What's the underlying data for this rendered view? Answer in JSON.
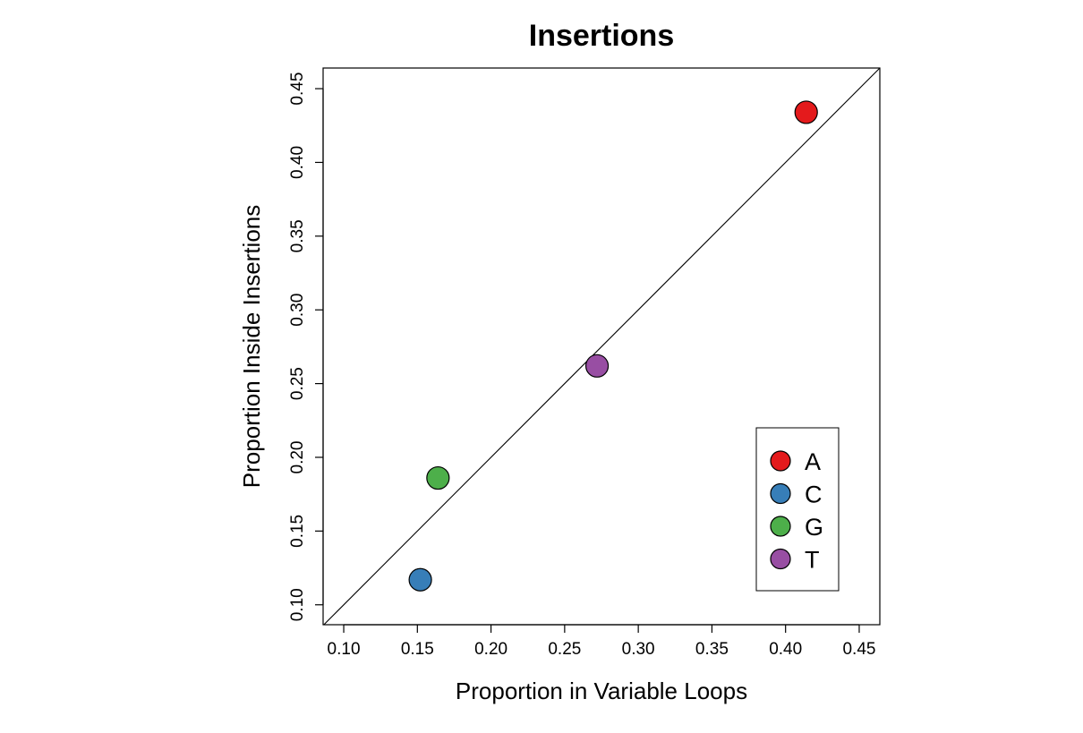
{
  "chart_data": {
    "type": "scatter",
    "title": "Insertions",
    "xlabel": "Proportion in Variable Loops",
    "ylabel": "Proportion Inside Insertions",
    "xlim": [
      0.086,
      0.464
    ],
    "ylim": [
      0.0865,
      0.464
    ],
    "x_ticks": [
      0.1,
      0.15,
      0.2,
      0.25,
      0.3,
      0.35,
      0.4,
      0.45
    ],
    "x_tick_labels": [
      "0.10",
      "0.15",
      "0.20",
      "0.25",
      "0.30",
      "0.35",
      "0.40",
      "0.45"
    ],
    "y_ticks": [
      0.1,
      0.15,
      0.2,
      0.25,
      0.3,
      0.35,
      0.4,
      0.45
    ],
    "y_tick_labels": [
      "0.10",
      "0.15",
      "0.20",
      "0.25",
      "0.30",
      "0.35",
      "0.40",
      "0.45"
    ],
    "reference_line": "y = x",
    "grid": false,
    "legend_position": "bottom-right",
    "series": [
      {
        "name": "A",
        "x": 0.414,
        "y": 0.434,
        "color": "#e41a1c"
      },
      {
        "name": "C",
        "x": 0.152,
        "y": 0.117,
        "color": "#377eb8"
      },
      {
        "name": "G",
        "x": 0.164,
        "y": 0.186,
        "color": "#4daf4a"
      },
      {
        "name": "T",
        "x": 0.272,
        "y": 0.262,
        "color": "#984ea3"
      }
    ]
  }
}
